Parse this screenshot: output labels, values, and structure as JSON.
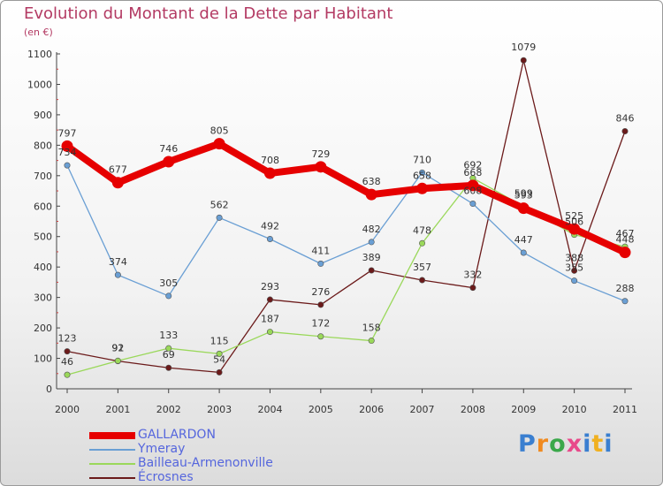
{
  "header": {
    "title": "Evolution du Montant de la Dette par Habitant",
    "unit": "(en €)"
  },
  "logo": {
    "text": "Proxiti",
    "colors": [
      "#3a7fd0",
      "#f08a20",
      "#3aa84a",
      "#e84a8a",
      "#3a7fd0",
      "#f0b020",
      "#3a7fd0"
    ]
  },
  "chart_data": {
    "type": "line",
    "title": "Evolution du Montant de la Dette par Habitant",
    "ylabel": "(en €)",
    "xlabel": "",
    "x": [
      "2000",
      "2001",
      "2002",
      "2003",
      "2004",
      "2005",
      "2006",
      "2007",
      "2008",
      "2009",
      "2010",
      "2011"
    ],
    "ylim": [
      0,
      1100
    ],
    "yticks": [
      0,
      100,
      200,
      300,
      400,
      500,
      600,
      700,
      800,
      900,
      1000,
      1100
    ],
    "grid": false,
    "legend_position": "bottom-left",
    "series": [
      {
        "name": "GALLARDON",
        "color": "#e60000",
        "values": [
          797,
          677,
          746,
          805,
          708,
          729,
          638,
          658,
          668,
          593,
          525,
          448
        ]
      },
      {
        "name": "Ymeray",
        "color": "#6a9fd4",
        "values": [
          734,
          374,
          305,
          562,
          492,
          411,
          482,
          710,
          608,
          447,
          355,
          288
        ]
      },
      {
        "name": "Bailleau-Armenonville",
        "color": "#9ad85a",
        "values": [
          46,
          92,
          133,
          115,
          187,
          172,
          158,
          478,
          692,
          599,
          506,
          467
        ]
      },
      {
        "name": "Écrosnes",
        "color": "#6b1a1a",
        "values": [
          123,
          91,
          69,
          54,
          293,
          276,
          389,
          357,
          332,
          1079,
          388,
          846
        ]
      }
    ]
  }
}
